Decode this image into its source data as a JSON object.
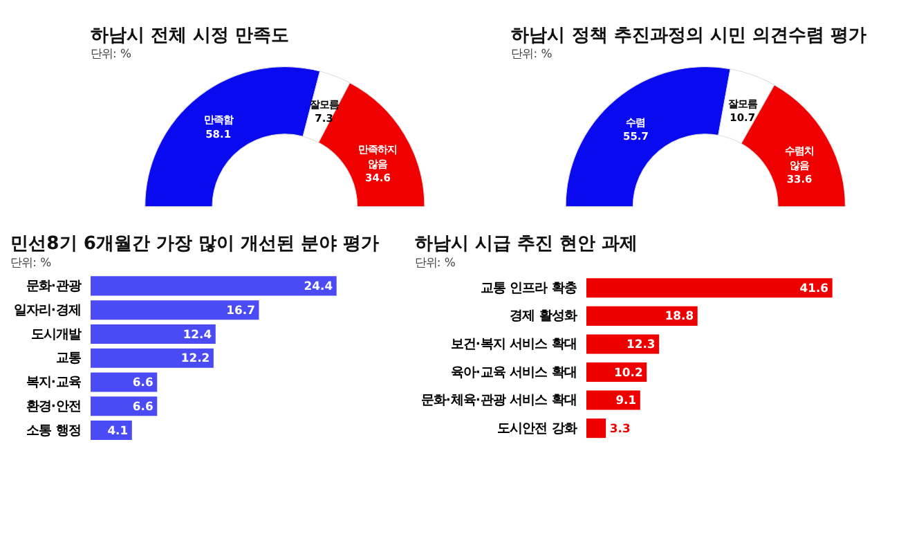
{
  "chart_data": [
    {
      "type": "donut",
      "title": "하남시 전체 시정 만족도",
      "subtitle": "단위: %",
      "categories": [
        "만족함",
        "잘모름",
        "만족하지 않음"
      ],
      "values": [
        58.1,
        7.3,
        34.6
      ],
      "colors": [
        "#0a0af0",
        "#ffffff",
        "#f00000"
      ],
      "data_labels": true
    },
    {
      "type": "donut",
      "title": "하남시 정책 추진과정의 시민 의견수렴 평가",
      "subtitle": "단위: %",
      "categories": [
        "수렴",
        "잘모름",
        "수렴치 않음"
      ],
      "values": [
        55.7,
        10.7,
        33.6
      ],
      "colors": [
        "#0a0af0",
        "#ffffff",
        "#f00000"
      ],
      "data_labels": true
    },
    {
      "type": "bar",
      "orientation": "horizontal",
      "title": "민선8기 6개월간 가장 많이 개선된 분야 평가",
      "subtitle": "단위: %",
      "categories": [
        "문화·관광",
        "일자리·경제",
        "도시개발",
        "교통",
        "복지·교육",
        "환경·안전",
        "소통 행정"
      ],
      "values": [
        24.4,
        16.7,
        12.4,
        12.2,
        6.6,
        6.6,
        4.1
      ],
      "color": "#4b4bf5",
      "data_labels": true
    },
    {
      "type": "bar",
      "orientation": "horizontal",
      "title": "하남시 시급 추진 현안 과제",
      "subtitle": "단위: %",
      "categories": [
        "교통 인프라 확충",
        "경제 활성화",
        "보건·복지 서비스 확대",
        "육아·교육 서비스 확대",
        "문화·체육·관광 서비스 확대",
        "도시안전 강화"
      ],
      "values": [
        41.6,
        18.8,
        12.3,
        10.2,
        9.1,
        3.3
      ],
      "color": "#ee0000",
      "data_labels": true
    }
  ]
}
